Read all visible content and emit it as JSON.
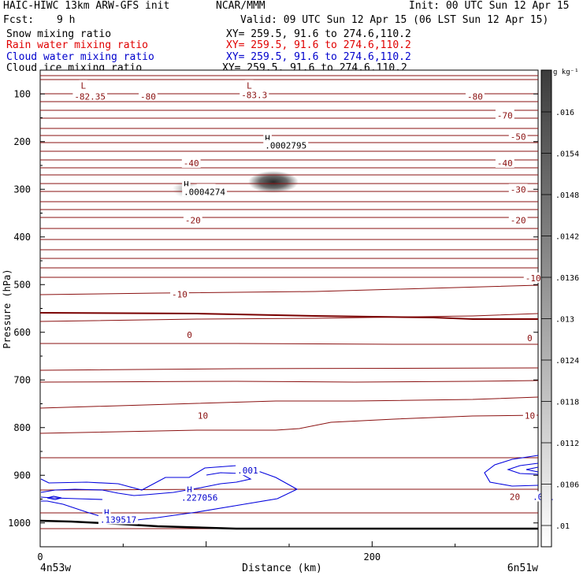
{
  "header": {
    "model": "HAIC-HIWC 13km ARW-GFS init",
    "org": "NCAR/MMM",
    "init": "Init: 00 UTC Sun 12 Apr 15",
    "fcst_label": "Fcst:",
    "fcst_value": "9 h",
    "valid": "Valid: 09 UTC Sun 12 Apr 15 (06 LST Sun 12 Apr 15)"
  },
  "fields": [
    {
      "name": "Snow mixing ratio",
      "xy": "XY= 259.5, 91.6 to 274.6,110.2",
      "color": "#000000"
    },
    {
      "name": "Rain water mixing ratio",
      "xy": "XY= 259.5, 91.6 to 274.6,110.2",
      "color": "#e00000"
    },
    {
      "name": "Cloud water mixing ratio",
      "xy": "XY= 259.5, 91.6 to 274.6,110.2",
      "color": "#0000cc"
    },
    {
      "name": "Cloud ice mixing ratio",
      "xy": "XY= 259.5, 91.6 to 274.6,110.2",
      "color": "#000000"
    }
  ],
  "chart_data": {
    "type": "contour cross-section",
    "ylabel": "Pressure (hPa)",
    "xlabel": "Distance (km)",
    "x_ticks": [
      0,
      200
    ],
    "x_range": [
      0,
      300
    ],
    "y_ticks": [
      100,
      200,
      300,
      400,
      500,
      600,
      700,
      800,
      900,
      1000
    ],
    "y_range": [
      50,
      1050
    ],
    "x_endpoints": {
      "left": "4n53w",
      "right": "6n51w"
    },
    "temperature_contour_labels": [
      {
        "x": 30,
        "p": 105,
        "text": "-82.35"
      },
      {
        "x": 65,
        "p": 105,
        "text": "-80"
      },
      {
        "x": 129,
        "p": 102,
        "text": "-83.3"
      },
      {
        "x": 262,
        "p": 105,
        "text": "-80"
      },
      {
        "x": 280,
        "p": 145,
        "text": "-70"
      },
      {
        "x": 288,
        "p": 190,
        "text": "-50"
      },
      {
        "x": 280,
        "p": 245,
        "text": "-40"
      },
      {
        "x": 91,
        "p": 245,
        "text": "-40"
      },
      {
        "x": 100,
        "p": 300,
        "text": "-30"
      },
      {
        "x": 288,
        "p": 300,
        "text": "-30"
      },
      {
        "x": 92,
        "p": 365,
        "text": "-20"
      },
      {
        "x": 288,
        "p": 365,
        "text": "-20"
      },
      {
        "x": 84,
        "p": 520,
        "text": "-10"
      },
      {
        "x": 297,
        "p": 486,
        "text": "-10"
      },
      {
        "x": 90,
        "p": 605,
        "text": "0"
      },
      {
        "x": 295,
        "p": 612,
        "text": "0"
      },
      {
        "x": 98,
        "p": 775,
        "text": "10"
      },
      {
        "x": 295,
        "p": 775,
        "text": "10"
      },
      {
        "x": 286,
        "p": 945,
        "text": "20"
      }
    ],
    "extrema_labels": [
      {
        "x": 26,
        "p": 82,
        "text": "L"
      },
      {
        "x": 126,
        "p": 82,
        "text": "L"
      },
      {
        "x": 137,
        "p": 193,
        "text": "H"
      },
      {
        "x": 148,
        "p": 208,
        "text": ".0002795"
      },
      {
        "x": 88,
        "p": 290,
        "text": "H"
      },
      {
        "x": 99,
        "p": 305,
        "text": ".0004274"
      },
      {
        "x": 90,
        "p": 930,
        "text": "H"
      },
      {
        "x": 96,
        "p": 947,
        "text": ".227056"
      },
      {
        "x": 40,
        "p": 978,
        "text": "H"
      },
      {
        "x": 47,
        "p": 993,
        "text": ".139517"
      }
    ],
    "cloud_water_labels": [
      {
        "x": 125,
        "p": 890,
        "text": ".001"
      },
      {
        "x": 303,
        "p": 945,
        "text": ".001"
      }
    ],
    "colorbar": {
      "unit": "g kg⁻¹",
      "ticks": [
        ".016",
        ".0154",
        ".0148",
        ".0142",
        ".0136",
        ".013",
        ".0124",
        ".0118",
        ".0112",
        ".0106",
        ".01"
      ]
    }
  }
}
